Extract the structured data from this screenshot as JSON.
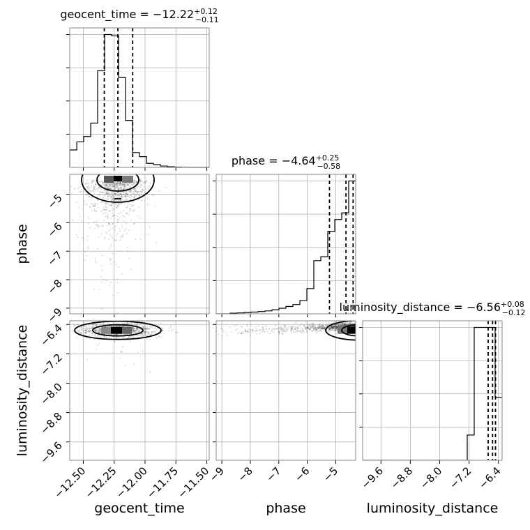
{
  "chart_data": {
    "type": "corner",
    "parameters": [
      "geocent_time",
      "phase",
      "luminosity_distance"
    ],
    "titles": {
      "geocent_time": {
        "name": "geocent_time",
        "median": "−12.22",
        "plus": "+0.12",
        "minus": "−0.11"
      },
      "phase": {
        "name": "phase",
        "median": "−4.64",
        "plus": "+0.25",
        "minus": "−0.58"
      },
      "luminosity_distance": {
        "name": "luminosity_distance",
        "median": "−6.56",
        "plus": "+0.08",
        "minus": "−0.12"
      }
    },
    "axes": {
      "geocent_time": {
        "label": "geocent_time",
        "range": [
          -12.61,
          -11.48
        ],
        "ticks": [
          -12.5,
          -12.25,
          -12.0,
          -11.75,
          -11.5
        ],
        "tick_labels": [
          "−12.50",
          "−12.25",
          "−12.00",
          "−11.75",
          "−11.50"
        ]
      },
      "phase": {
        "label": "phase",
        "range": [
          -9.2,
          -4.3
        ],
        "ticks": [
          -9,
          -8,
          -7,
          -6,
          -5
        ],
        "tick_labels": [
          "−9",
          "−8",
          "−7",
          "−6",
          "−5"
        ]
      },
      "luminosity_distance": {
        "label": "luminosity_distance",
        "range": [
          -10.1,
          -6.3
        ],
        "ticks": [
          -9.6,
          -8.8,
          -8.0,
          -7.2,
          -6.4
        ],
        "tick_labels": [
          "−9.6",
          "−8.8",
          "−8.0",
          "−7.2",
          "−6.4"
        ]
      }
    },
    "histograms": {
      "geocent_time": {
        "bin_edges": [
          -12.61,
          -12.553,
          -12.497,
          -12.44,
          -12.384,
          -12.327,
          -12.271,
          -12.214,
          -12.158,
          -12.101,
          -12.045,
          -11.988,
          -11.932,
          -11.875,
          -11.819,
          -11.762,
          -11.706,
          -11.649,
          -11.593,
          -11.536,
          -11.48
        ],
        "counts": [
          0.13,
          0.19,
          0.23,
          0.33,
          0.72,
          0.99,
          0.98,
          0.67,
          0.35,
          0.11,
          0.08,
          0.03,
          0.02,
          0.01,
          0.005,
          0.002,
          0.001,
          0.0,
          0.0,
          0.0
        ],
        "quantiles": [
          -12.33,
          -12.22,
          -12.1
        ]
      },
      "phase": {
        "bin_edges": [
          -9.2,
          -8.955,
          -8.71,
          -8.465,
          -8.22,
          -7.975,
          -7.73,
          -7.485,
          -7.24,
          -6.995,
          -6.75,
          -6.505,
          -6.26,
          -6.015,
          -5.77,
          -5.525,
          -5.28,
          -5.035,
          -4.79,
          -4.545,
          -4.3
        ],
        "counts": [
          0.0,
          0.0,
          0.005,
          0.007,
          0.01,
          0.013,
          0.017,
          0.022,
          0.03,
          0.042,
          0.055,
          0.07,
          0.1,
          0.19,
          0.4,
          0.43,
          0.62,
          0.71,
          0.76,
          1.0
        ],
        "quantiles": [
          -5.22,
          -4.64,
          -4.39
        ]
      },
      "luminosity_distance": {
        "bin_edges": [
          -10.1,
          -9.91,
          -9.72,
          -9.53,
          -9.34,
          -9.15,
          -8.96,
          -8.77,
          -8.58,
          -8.39,
          -8.2,
          -8.01,
          -7.82,
          -7.63,
          -7.44,
          -7.25,
          -7.06,
          -6.87,
          -6.68,
          -6.49,
          -6.3
        ],
        "counts": [
          0,
          0,
          0,
          0,
          0,
          0,
          0,
          0,
          0,
          0,
          0,
          0,
          0,
          0,
          0,
          0.18,
          0.95,
          0.95,
          0.95,
          0.45
        ],
        "quantiles": [
          -6.68,
          -6.56,
          -6.48
        ]
      }
    },
    "scatter": [
      {
        "x": "geocent_time",
        "y": "phase",
        "x_center": -12.22,
        "y_center": -4.64
      },
      {
        "x": "geocent_time",
        "y": "luminosity_distance",
        "x_center": -12.22,
        "y_center": -6.56
      },
      {
        "x": "phase",
        "y": "luminosity_distance",
        "x_center": -4.64,
        "y_center": -6.56
      }
    ]
  }
}
